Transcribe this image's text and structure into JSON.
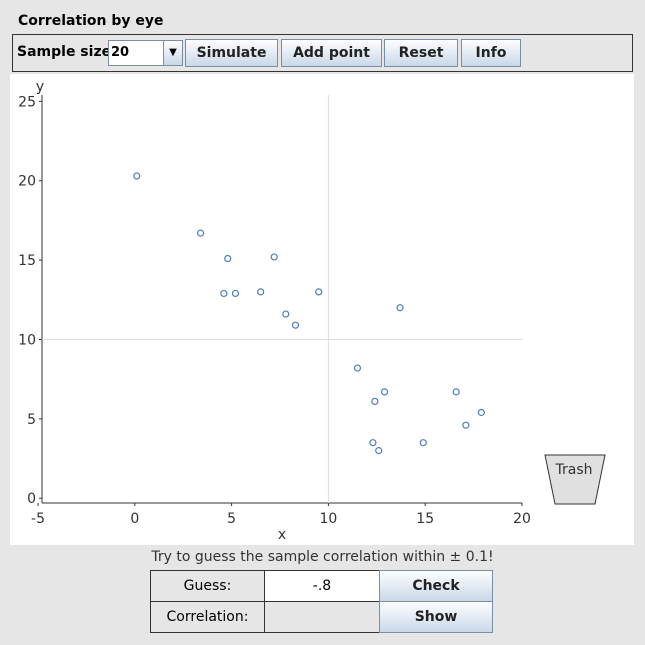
{
  "title": "Correlation by eye",
  "toolbar": {
    "sample_size_label": "Sample size:",
    "sample_size": "20",
    "buttons": [
      "Simulate",
      "Add point",
      "Reset",
      "Info"
    ]
  },
  "chart_data": {
    "type": "scatter",
    "x_label": "x",
    "y_label": "y",
    "x": [
      0.1,
      3.4,
      4.8,
      7.2,
      4.6,
      5.2,
      6.5,
      9.5,
      7.8,
      8.3,
      13.7,
      11.5,
      12.9,
      12.4,
      16.6,
      17.9,
      17.1,
      12.3,
      12.6,
      14.9
    ],
    "values": [
      20.3,
      16.7,
      15.1,
      15.2,
      12.9,
      12.9,
      13.0,
      13.0,
      11.6,
      10.9,
      12.0,
      8.2,
      6.7,
      6.1,
      6.7,
      5.4,
      4.6,
      3.5,
      3.0,
      3.5
    ],
    "color": "#4a7fc0",
    "xlim": [
      -5,
      20
    ],
    "ylim": [
      -0.3,
      25.4
    ],
    "xticks": [
      -5,
      0,
      5,
      10,
      15,
      20
    ],
    "yticks": [
      0,
      5,
      10,
      15,
      20,
      25
    ],
    "guide_x": 10,
    "guide_y": 10
  },
  "trash": "Trash",
  "instruction": "Try to guess the sample correlation within ± 0.1!",
  "guess_label": "Guess:",
  "guess_value": "-.8",
  "check": "Check",
  "correlation_label": "Correlation:",
  "show": "Show"
}
